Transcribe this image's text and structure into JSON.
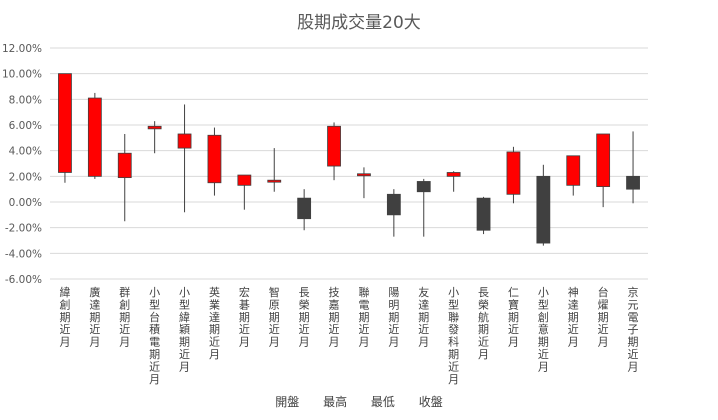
{
  "chart_data": {
    "type": "candlestick",
    "title": "股期成交量20大",
    "legend": [
      "開盤",
      "最高",
      "最低",
      "收盤"
    ],
    "legend_position": "bottom",
    "ylim": [
      -6,
      12
    ],
    "yticks": [
      -6,
      -4,
      -2,
      0,
      2,
      4,
      6,
      8,
      10,
      12
    ],
    "ytick_labels": [
      "-6.00%",
      "-4.00%",
      "-2.00%",
      "0.00%",
      "2.00%",
      "4.00%",
      "6.00%",
      "8.00%",
      "10.00%",
      "12.00%"
    ],
    "grid": true,
    "up_color": "#ff0000",
    "down_color": "#404040",
    "categories": [
      "緯創期近月",
      "廣達期近月",
      "群創期近月",
      "小型台積電期近月",
      "小型緯穎期近月",
      "英業達期近月",
      "宏碁期近月",
      "智原期近月",
      "長榮期近月",
      "技嘉期近月",
      "聯電期近月",
      "陽明期近月",
      "友達期近月",
      "小型聯發科期近月",
      "長榮航期近月",
      "仁寶期近月",
      "小型創意期近月",
      "神達期近月",
      "台燿期近月",
      "京元電子期近月"
    ],
    "open": [
      2.3,
      2.0,
      1.9,
      5.7,
      4.2,
      1.5,
      1.3,
      1.6,
      0.3,
      2.8,
      2.1,
      0.6,
      1.6,
      2.0,
      0.3,
      0.6,
      2.0,
      1.3,
      1.2,
      2.0
    ],
    "high": [
      10.0,
      8.5,
      5.3,
      6.3,
      7.6,
      5.8,
      2.1,
      4.2,
      1.0,
      6.2,
      2.7,
      1.0,
      1.8,
      2.4,
      0.4,
      4.3,
      2.9,
      3.6,
      5.3,
      5.5
    ],
    "low": [
      1.5,
      1.8,
      -1.5,
      3.8,
      -0.8,
      0.5,
      -0.6,
      0.8,
      -2.2,
      1.7,
      0.3,
      -2.7,
      -2.7,
      0.8,
      -2.5,
      -0.1,
      -3.4,
      0.5,
      -0.4,
      -0.1
    ],
    "close": [
      10.0,
      8.1,
      3.8,
      5.9,
      5.3,
      5.2,
      2.1,
      1.7,
      -1.3,
      5.9,
      2.2,
      -1.0,
      0.8,
      2.3,
      -2.2,
      3.9,
      -3.2,
      3.6,
      5.3,
      1.0
    ]
  }
}
